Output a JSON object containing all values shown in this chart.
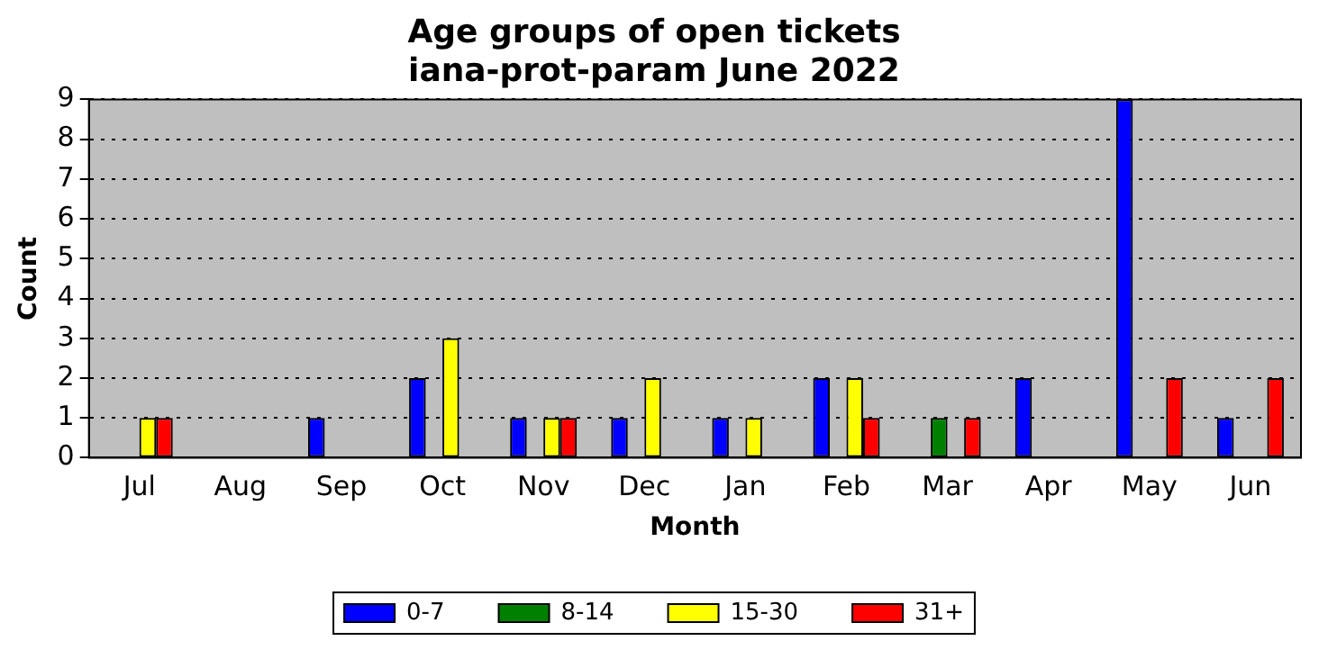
{
  "chart_data": {
    "type": "bar",
    "title": "Age groups of open tickets",
    "subtitle": "iana-prot-param June 2022",
    "xlabel": "Month",
    "ylabel": "Count",
    "categories": [
      "Jul",
      "Aug",
      "Sep",
      "Oct",
      "Nov",
      "Dec",
      "Jan",
      "Feb",
      "Mar",
      "Apr",
      "May",
      "Jun"
    ],
    "series": [
      {
        "name": "0-7",
        "color": "#0000ff",
        "values": [
          0,
          0,
          1,
          2,
          1,
          1,
          1,
          2,
          0,
          2,
          9,
          1
        ]
      },
      {
        "name": "8-14",
        "color": "#008000",
        "values": [
          0,
          0,
          0,
          0,
          0,
          0,
          0,
          0,
          1,
          0,
          0,
          0
        ]
      },
      {
        "name": "15-30",
        "color": "#ffff00",
        "values": [
          1,
          0,
          0,
          3,
          1,
          2,
          1,
          2,
          0,
          0,
          0,
          0
        ]
      },
      {
        "name": "31+",
        "color": "#ff0000",
        "values": [
          1,
          0,
          0,
          0,
          1,
          0,
          0,
          1,
          1,
          0,
          2,
          2
        ]
      }
    ],
    "ylim": [
      0,
      9
    ],
    "yticks": [
      0,
      1,
      2,
      3,
      4,
      5,
      6,
      7,
      8,
      9
    ],
    "grid": "y",
    "legend": "bottom"
  }
}
